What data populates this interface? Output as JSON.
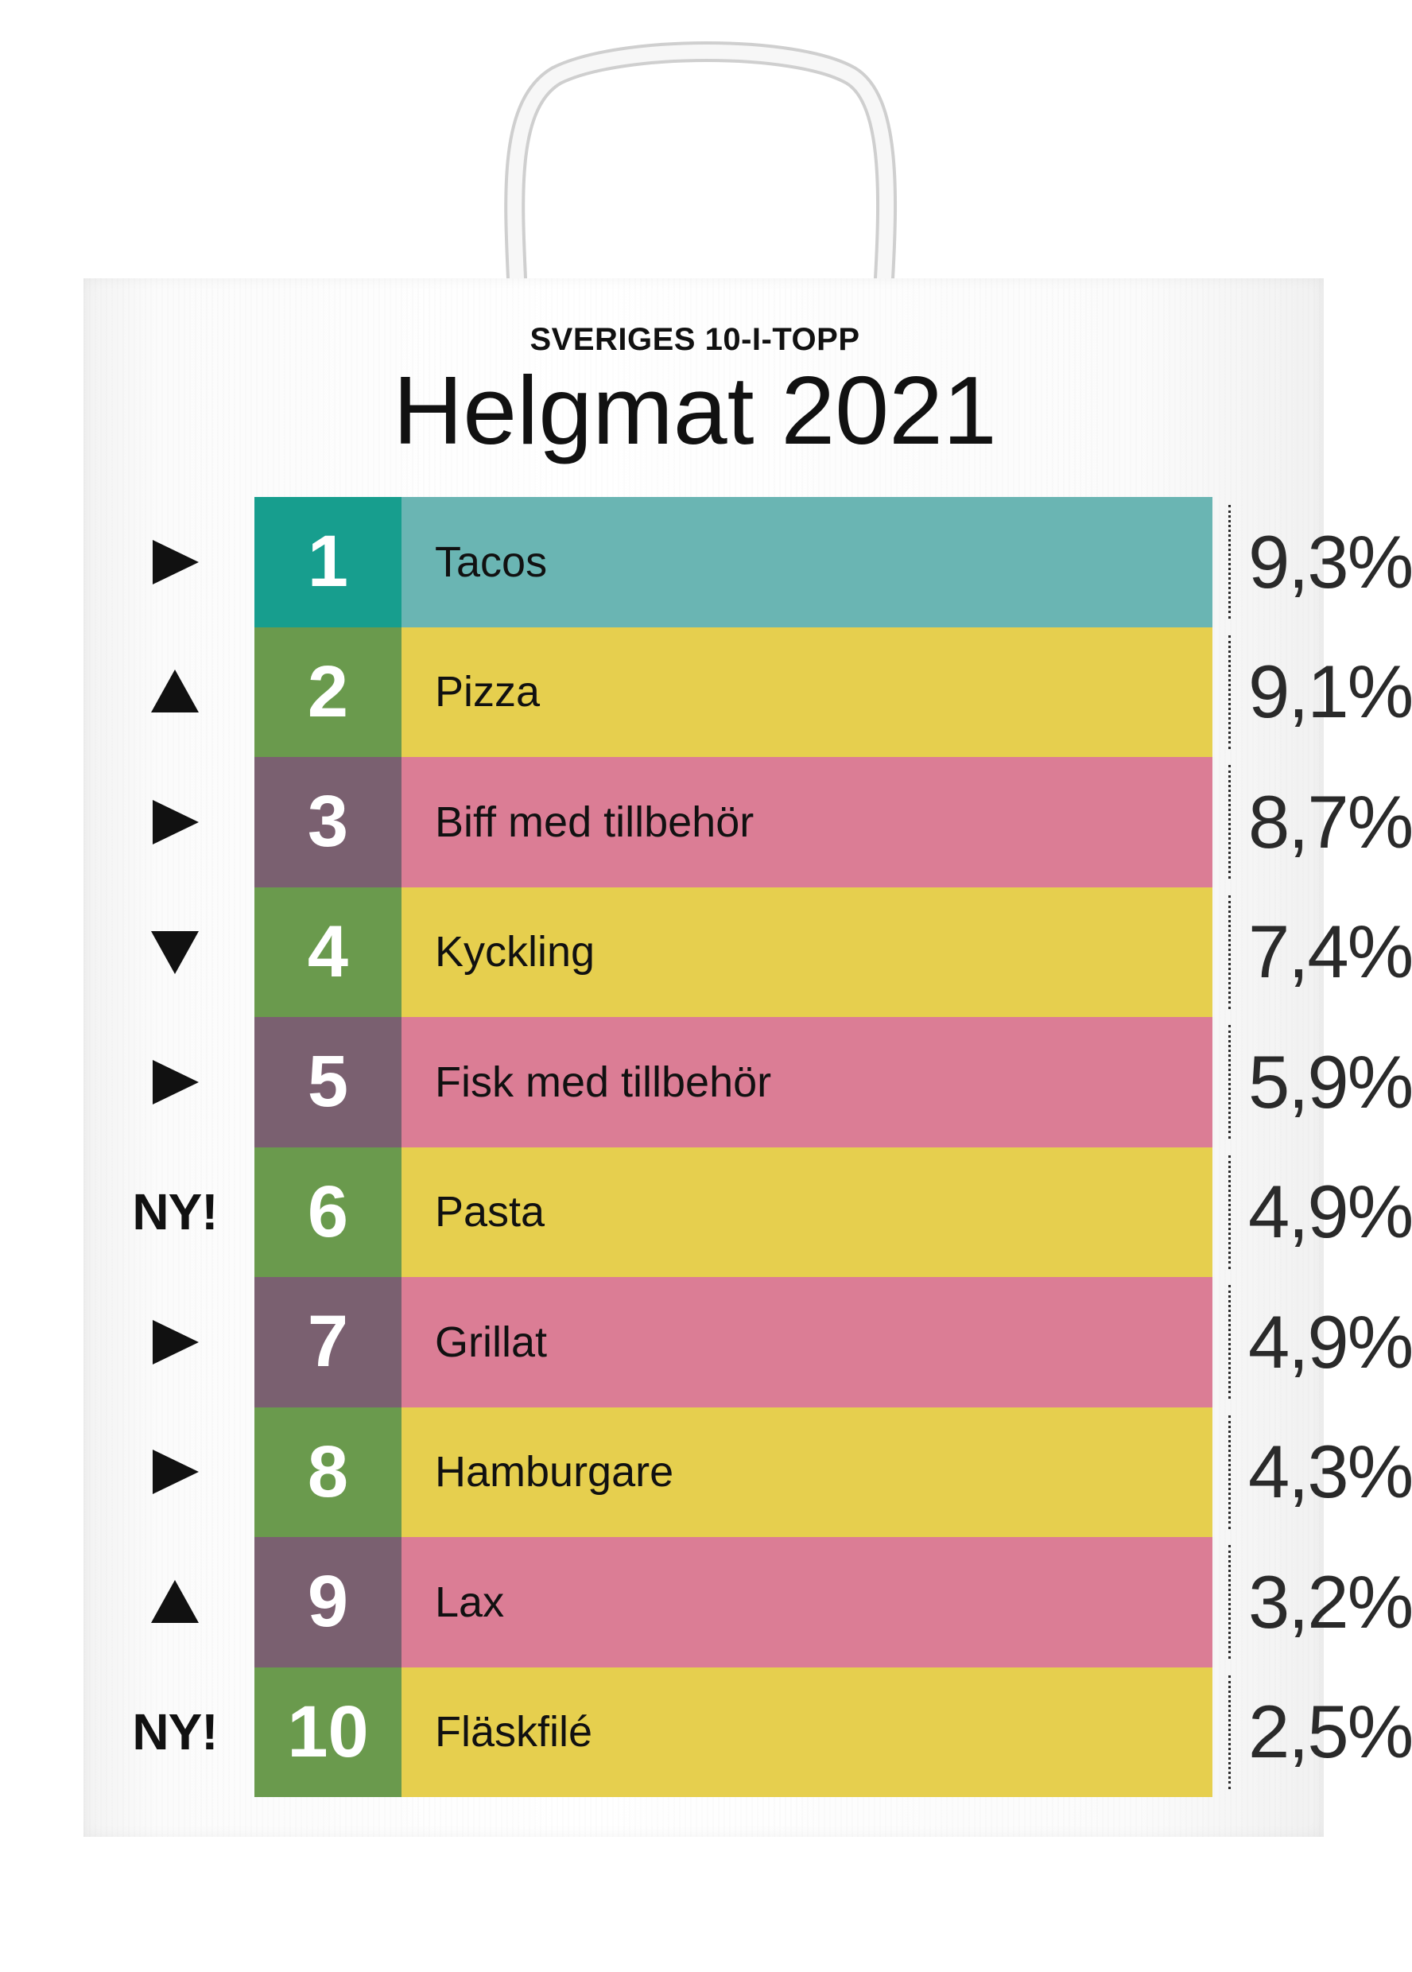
{
  "header": {
    "kicker": "SVERIGES 10-I-TOPP",
    "title": "Helgmat 2021"
  },
  "colors": {
    "teal_rank": "#179e8e",
    "teal_band": "#6ab5b3",
    "green_rank": "#6a9a4d",
    "purple_rank": "#7a6070",
    "yellow_band": "#e6cf4e",
    "pink_band": "#db7d95"
  },
  "rows": [
    {
      "rank": "1",
      "dish": "Tacos",
      "percent": "9,3%",
      "trend": "same",
      "trend_label": "",
      "rank_color": "#179e8e",
      "band_color": "#6ab5b3"
    },
    {
      "rank": "2",
      "dish": "Pizza",
      "percent": "9,1%",
      "trend": "up",
      "trend_label": "",
      "rank_color": "#6a9a4d",
      "band_color": "#e6cf4e"
    },
    {
      "rank": "3",
      "dish": "Biff med tillbehör",
      "percent": "8,7%",
      "trend": "same",
      "trend_label": "",
      "rank_color": "#7a6070",
      "band_color": "#db7d95"
    },
    {
      "rank": "4",
      "dish": "Kyckling",
      "percent": "7,4%",
      "trend": "down",
      "trend_label": "",
      "rank_color": "#6a9a4d",
      "band_color": "#e6cf4e"
    },
    {
      "rank": "5",
      "dish": "Fisk med tillbehör",
      "percent": "5,9%",
      "trend": "same",
      "trend_label": "",
      "rank_color": "#7a6070",
      "band_color": "#db7d95"
    },
    {
      "rank": "6",
      "dish": "Pasta",
      "percent": "4,9%",
      "trend": "new",
      "trend_label": "NY!",
      "rank_color": "#6a9a4d",
      "band_color": "#e6cf4e"
    },
    {
      "rank": "7",
      "dish": "Grillat",
      "percent": "4,9%",
      "trend": "same",
      "trend_label": "",
      "rank_color": "#7a6070",
      "band_color": "#db7d95"
    },
    {
      "rank": "8",
      "dish": "Hamburgare",
      "percent": "4,3%",
      "trend": "same",
      "trend_label": "",
      "rank_color": "#6a9a4d",
      "band_color": "#e6cf4e"
    },
    {
      "rank": "9",
      "dish": "Lax",
      "percent": "3,2%",
      "trend": "up",
      "trend_label": "",
      "rank_color": "#7a6070",
      "band_color": "#db7d95"
    },
    {
      "rank": "10",
      "dish": "Fläskfilé",
      "percent": "2,5%",
      "trend": "new",
      "trend_label": "NY!",
      "rank_color": "#6a9a4d",
      "band_color": "#e6cf4e"
    }
  ]
}
